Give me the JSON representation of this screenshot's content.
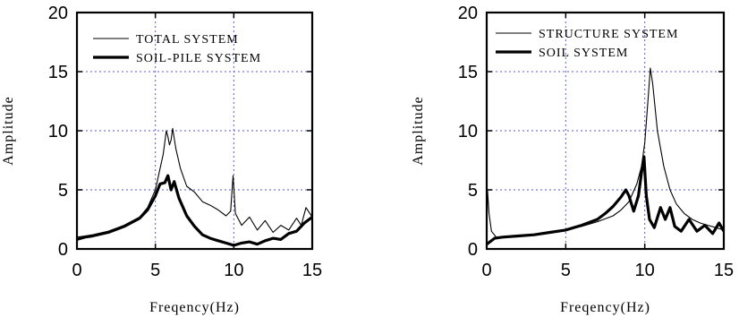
{
  "chart_data": [
    {
      "type": "line",
      "xlabel": "Freqency(Hz)",
      "ylabel": "Amplitude",
      "xlim": [
        0,
        15
      ],
      "ylim": [
        0,
        20
      ],
      "xticks": [
        "0",
        "5",
        "10",
        "15"
      ],
      "yticks": [
        "0",
        "5",
        "10",
        "15",
        "20"
      ],
      "grid": true,
      "legend_position": "top-right",
      "series": [
        {
          "name": "TOTAL SYSTEM",
          "style": "thin",
          "x": [
            0,
            0.5,
            1,
            2,
            3,
            4,
            4.5,
            5,
            5.3,
            5.5,
            5.7,
            5.8,
            5.9,
            6.0,
            6.1,
            6.3,
            6.6,
            7,
            7.5,
            8,
            8.5,
            9,
            9.5,
            9.8,
            9.95,
            10.1,
            10.5,
            11,
            11.5,
            12,
            12.5,
            13,
            13.5,
            14,
            14.3,
            14.6,
            15
          ],
          "y": [
            1.0,
            1.1,
            1.2,
            1.5,
            2.0,
            2.7,
            3.5,
            5.0,
            6.8,
            8.0,
            10.0,
            9.5,
            8.8,
            9.2,
            10.2,
            8.5,
            6.8,
            5.3,
            4.8,
            4.0,
            3.7,
            3.3,
            2.8,
            3.2,
            6.2,
            3.0,
            2.0,
            2.7,
            1.6,
            2.4,
            1.4,
            2.0,
            1.6,
            2.6,
            2.0,
            3.5,
            2.7
          ]
        },
        {
          "name": "SOIL-PILE SYSTEM",
          "style": "thick",
          "x": [
            0,
            0.5,
            1,
            2,
            3,
            4,
            4.5,
            5,
            5.3,
            5.6,
            5.8,
            6.0,
            6.2,
            6.5,
            7,
            7.5,
            8,
            8.5,
            9,
            9.5,
            10,
            10.5,
            11,
            11.5,
            12,
            12.5,
            13,
            13.5,
            14,
            14.5,
            15
          ],
          "y": [
            0.8,
            1.0,
            1.1,
            1.4,
            1.9,
            2.6,
            3.3,
            4.5,
            5.5,
            5.6,
            6.2,
            5.0,
            5.7,
            4.3,
            2.8,
            1.9,
            1.2,
            0.9,
            0.7,
            0.5,
            0.3,
            0.5,
            0.6,
            0.4,
            0.7,
            0.9,
            0.8,
            1.3,
            1.5,
            2.2,
            2.7
          ]
        }
      ]
    },
    {
      "type": "line",
      "xlabel": "Freqency(Hz)",
      "ylabel": "Amplitude",
      "xlim": [
        0,
        15
      ],
      "ylim": [
        0,
        20
      ],
      "xticks": [
        "0",
        "5",
        "10",
        "15"
      ],
      "yticks": [
        "0",
        "5",
        "10",
        "15",
        "20"
      ],
      "grid": true,
      "legend_position": "top-right",
      "series": [
        {
          "name": "STRUCTURE SYSTEM",
          "style": "thin",
          "x": [
            0,
            0.05,
            0.15,
            0.3,
            0.6,
            1,
            2,
            3,
            4,
            5,
            6,
            7,
            8,
            8.5,
            9,
            9.5,
            9.8,
            10.0,
            10.2,
            10.35,
            10.5,
            10.8,
            11.2,
            11.6,
            12,
            12.5,
            13,
            13.5,
            14,
            14.5,
            15
          ],
          "y": [
            0.5,
            5.0,
            3.0,
            1.5,
            1.0,
            1.0,
            1.1,
            1.2,
            1.4,
            1.6,
            1.9,
            2.3,
            2.8,
            3.3,
            4.0,
            5.5,
            7.0,
            9.0,
            12.5,
            15.3,
            14.0,
            10.0,
            7.0,
            5.0,
            3.8,
            3.0,
            2.5,
            2.2,
            2.0,
            1.8,
            1.6
          ]
        },
        {
          "name": "SOIL SYSTEM",
          "style": "thick",
          "x": [
            0,
            0.5,
            1,
            2,
            3,
            4,
            5,
            6,
            7,
            7.5,
            8,
            8.5,
            8.8,
            9.0,
            9.3,
            9.6,
            9.8,
            9.95,
            10.1,
            10.3,
            10.6,
            11,
            11.3,
            11.6,
            11.9,
            12.3,
            12.8,
            13.3,
            13.8,
            14.3,
            14.7,
            15
          ],
          "y": [
            0.4,
            0.9,
            1.0,
            1.1,
            1.2,
            1.4,
            1.6,
            2.0,
            2.5,
            3.0,
            3.6,
            4.4,
            5.0,
            4.5,
            3.2,
            4.5,
            6.5,
            7.8,
            4.5,
            2.5,
            1.8,
            3.5,
            2.5,
            3.5,
            1.9,
            1.5,
            2.5,
            1.5,
            2.0,
            1.3,
            2.2,
            1.5
          ]
        }
      ]
    }
  ]
}
